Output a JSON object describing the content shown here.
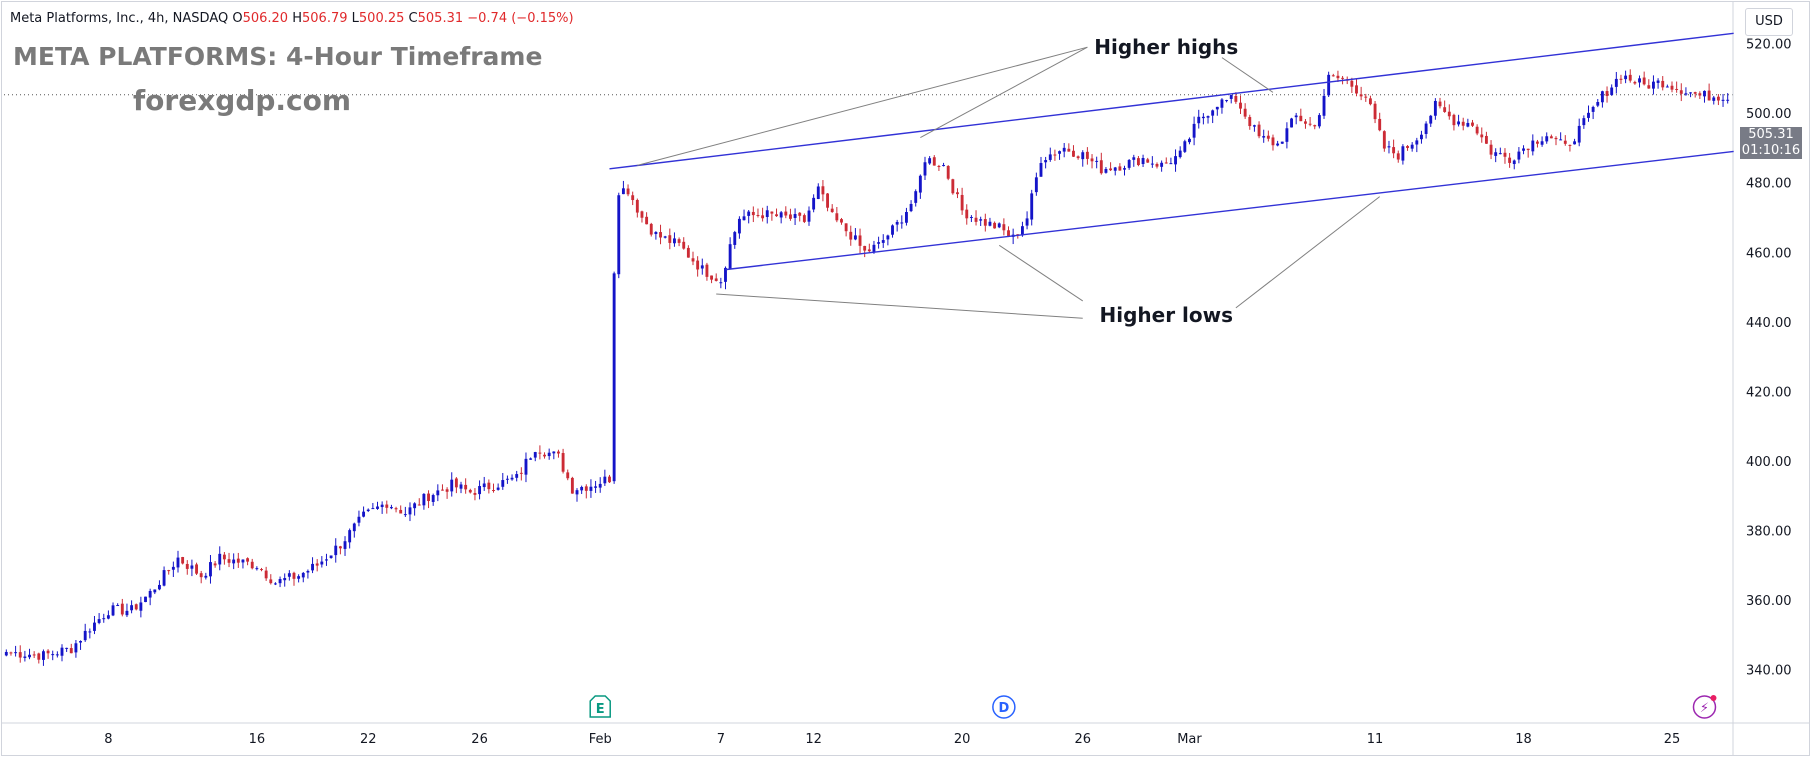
{
  "header": {
    "symbol_text": "Meta Platforms, Inc., 4h, NASDAQ",
    "open_label": "O",
    "open_value": "506.20",
    "high_label": "H",
    "high_value": "506.79",
    "low_label": "L",
    "low_value": "500.25",
    "close_label": "C",
    "close_value": "505.31",
    "change_text": "−0.74 (−0.15%)"
  },
  "overlay": {
    "title": "META PLATFORMS: 4-Hour Timeframe",
    "website": "forexgdp.com"
  },
  "price_scale": {
    "currency": "USD",
    "last_price": "505.31",
    "countdown": "01:10:16"
  },
  "colors": {
    "up": "#1414c8",
    "down": "#cc2b35",
    "channel": "#3232d6",
    "callout": "#808080",
    "event_earnings": "#089981",
    "event_dividend": "#2962ff",
    "event_split": "#9c27b0",
    "grid_text": "#131722"
  },
  "event_markers": [
    {
      "letter": "E",
      "name": "earnings",
      "index": 128
    },
    {
      "letter": "D",
      "name": "dividend",
      "index": 215
    },
    {
      "letter": "⚡",
      "name": "split",
      "index": 366
    }
  ],
  "chart_data": {
    "type": "candlestick",
    "title": "META PLATFORMS: 4-Hour Timeframe",
    "ylabel": "USD",
    "ylim": [
      326,
      532
    ],
    "y_ticks": [
      340,
      360,
      380,
      400,
      420,
      440,
      460,
      480,
      500,
      520
    ],
    "x_ticks": [
      {
        "label": "8",
        "index": 22
      },
      {
        "label": "16",
        "index": 54
      },
      {
        "label": "22",
        "index": 78
      },
      {
        "label": "26",
        "index": 102
      },
      {
        "label": "Feb",
        "index": 128
      },
      {
        "label": "7",
        "index": 154
      },
      {
        "label": "12",
        "index": 174
      },
      {
        "label": "20",
        "index": 206
      },
      {
        "label": "26",
        "index": 232
      },
      {
        "label": "Mar",
        "index": 255
      },
      {
        "label": "11",
        "index": 295
      },
      {
        "label": "18",
        "index": 327
      },
      {
        "label": "25",
        "index": 359
      }
    ],
    "num_bars": 372,
    "anchors": [
      [
        0,
        345
      ],
      [
        8,
        344
      ],
      [
        14,
        346
      ],
      [
        18,
        352
      ],
      [
        22,
        357
      ],
      [
        27,
        357
      ],
      [
        31,
        362
      ],
      [
        37,
        372
      ],
      [
        42,
        367
      ],
      [
        46,
        372
      ],
      [
        54,
        370
      ],
      [
        58,
        365
      ],
      [
        63,
        367
      ],
      [
        67,
        370
      ],
      [
        72,
        376
      ],
      [
        77,
        384
      ],
      [
        82,
        388
      ],
      [
        86,
        385
      ],
      [
        91,
        390
      ],
      [
        96,
        393
      ],
      [
        100,
        391
      ],
      [
        105,
        393
      ],
      [
        110,
        395
      ],
      [
        114,
        404
      ],
      [
        119,
        401
      ],
      [
        122,
        392
      ],
      [
        126,
        393
      ],
      [
        130,
        395
      ],
      [
        131,
        455
      ],
      [
        132,
        478
      ],
      [
        134,
        478
      ],
      [
        137,
        470
      ],
      [
        140,
        465
      ],
      [
        145,
        462
      ],
      [
        150,
        455
      ],
      [
        154,
        452
      ],
      [
        156,
        462
      ],
      [
        158,
        470
      ],
      [
        163,
        471
      ],
      [
        168,
        470
      ],
      [
        172,
        469
      ],
      [
        175,
        478
      ],
      [
        178,
        470
      ],
      [
        182,
        465
      ],
      [
        185,
        460
      ],
      [
        188,
        462
      ],
      [
        192,
        468
      ],
      [
        196,
        476
      ],
      [
        198,
        487
      ],
      [
        202,
        485
      ],
      [
        206,
        472
      ],
      [
        210,
        469
      ],
      [
        214,
        467
      ],
      [
        217,
        464
      ],
      [
        220,
        470
      ],
      [
        223,
        487
      ],
      [
        228,
        490
      ],
      [
        232,
        488
      ],
      [
        236,
        484
      ],
      [
        240,
        485
      ],
      [
        245,
        487
      ],
      [
        249,
        485
      ],
      [
        253,
        488
      ],
      [
        257,
        498
      ],
      [
        261,
        503
      ],
      [
        265,
        504
      ],
      [
        270,
        493
      ],
      [
        274,
        491
      ],
      [
        278,
        499
      ],
      [
        282,
        496
      ],
      [
        285,
        510
      ],
      [
        288,
        510
      ],
      [
        293,
        505
      ],
      [
        297,
        490
      ],
      [
        300,
        488
      ],
      [
        304,
        493
      ],
      [
        308,
        502
      ],
      [
        312,
        498
      ],
      [
        316,
        497
      ],
      [
        320,
        489
      ],
      [
        324,
        487
      ],
      [
        328,
        491
      ],
      [
        332,
        494
      ],
      [
        336,
        490
      ],
      [
        340,
        497
      ],
      [
        344,
        505
      ],
      [
        348,
        511
      ],
      [
        353,
        508
      ],
      [
        357,
        509
      ],
      [
        361,
        507
      ],
      [
        365,
        505
      ]
    ],
    "channel": {
      "upper": {
        "from": [
          130,
          484
        ],
        "to": [
          371,
          523
        ]
      },
      "lower": {
        "from": [
          155,
          455
        ],
        "to": [
          371,
          489
        ]
      }
    },
    "annotations": [
      {
        "text": "Higher highs",
        "at": [
          250,
          519
        ],
        "pointers": [
          [
            [
              233,
              519
            ],
            [
              136,
              485
            ]
          ],
          [
            [
              233,
              519
            ],
            [
              197,
              493
            ]
          ],
          [
            [
              262,
              516
            ],
            [
              273,
              506
            ]
          ]
        ]
      },
      {
        "text": "Higher lows",
        "at": [
          250,
          442
        ],
        "pointers": [
          [
            [
              232,
              441
            ],
            [
              153,
              448
            ]
          ],
          [
            [
              232,
              446
            ],
            [
              214,
              462
            ]
          ],
          [
            [
              265,
              444
            ],
            [
              296,
              476
            ]
          ]
        ]
      }
    ]
  }
}
